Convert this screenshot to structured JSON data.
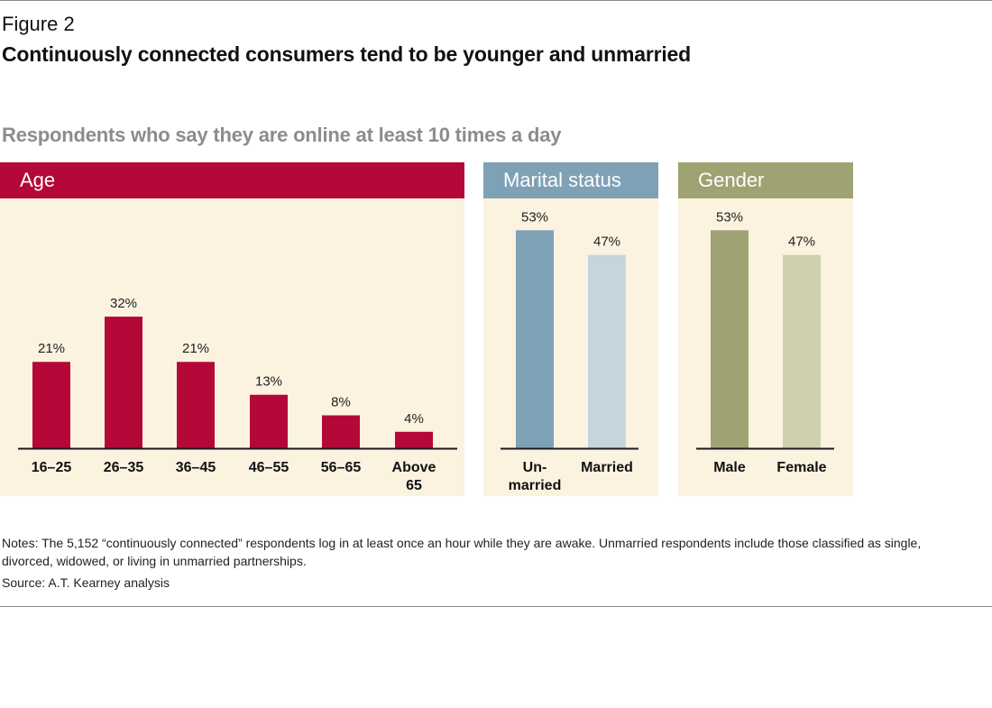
{
  "figure_label": "Figure 2",
  "title": "Continuously connected consumers tend to be younger and unmarried",
  "subtitle": "Respondents who say they are online at least 10 times a day",
  "notes": "Notes: The 5,152 “continuously connected” respondents log in at least once an hour while they are awake. Unmarried respondents include those classified as single, divorced, widowed, or living in unmarried partnerships.",
  "source": "Source: A.T. Kearney analysis",
  "colors": {
    "age": "#b30838",
    "marital_header": "#7fa1b6",
    "marital_unmarried": "#7fa1b6",
    "marital_married": "#c5d5de",
    "gender_header": "#9fa374",
    "gender_male": "#9fa374",
    "gender_female": "#cfd0b0",
    "panel_bg": "#fcf2e0"
  },
  "chart_data": [
    {
      "type": "bar",
      "title": "Age",
      "categories": [
        "16–25",
        "26–35",
        "36–45",
        "46–55",
        "56–65",
        "Above 65"
      ],
      "values": [
        21,
        32,
        21,
        13,
        8,
        4
      ],
      "labels": [
        "21%",
        "32%",
        "21%",
        "13%",
        "8%",
        "4%"
      ],
      "unit": "%"
    },
    {
      "type": "bar",
      "title": "Marital status",
      "categories": [
        "Unmarried",
        "Married"
      ],
      "values": [
        53,
        47
      ],
      "labels": [
        "53%",
        "47%"
      ],
      "unit": "%"
    },
    {
      "type": "bar",
      "title": "Gender",
      "categories": [
        "Male",
        "Female"
      ],
      "values": [
        53,
        47
      ],
      "labels": [
        "53%",
        "47%"
      ],
      "unit": "%"
    }
  ]
}
